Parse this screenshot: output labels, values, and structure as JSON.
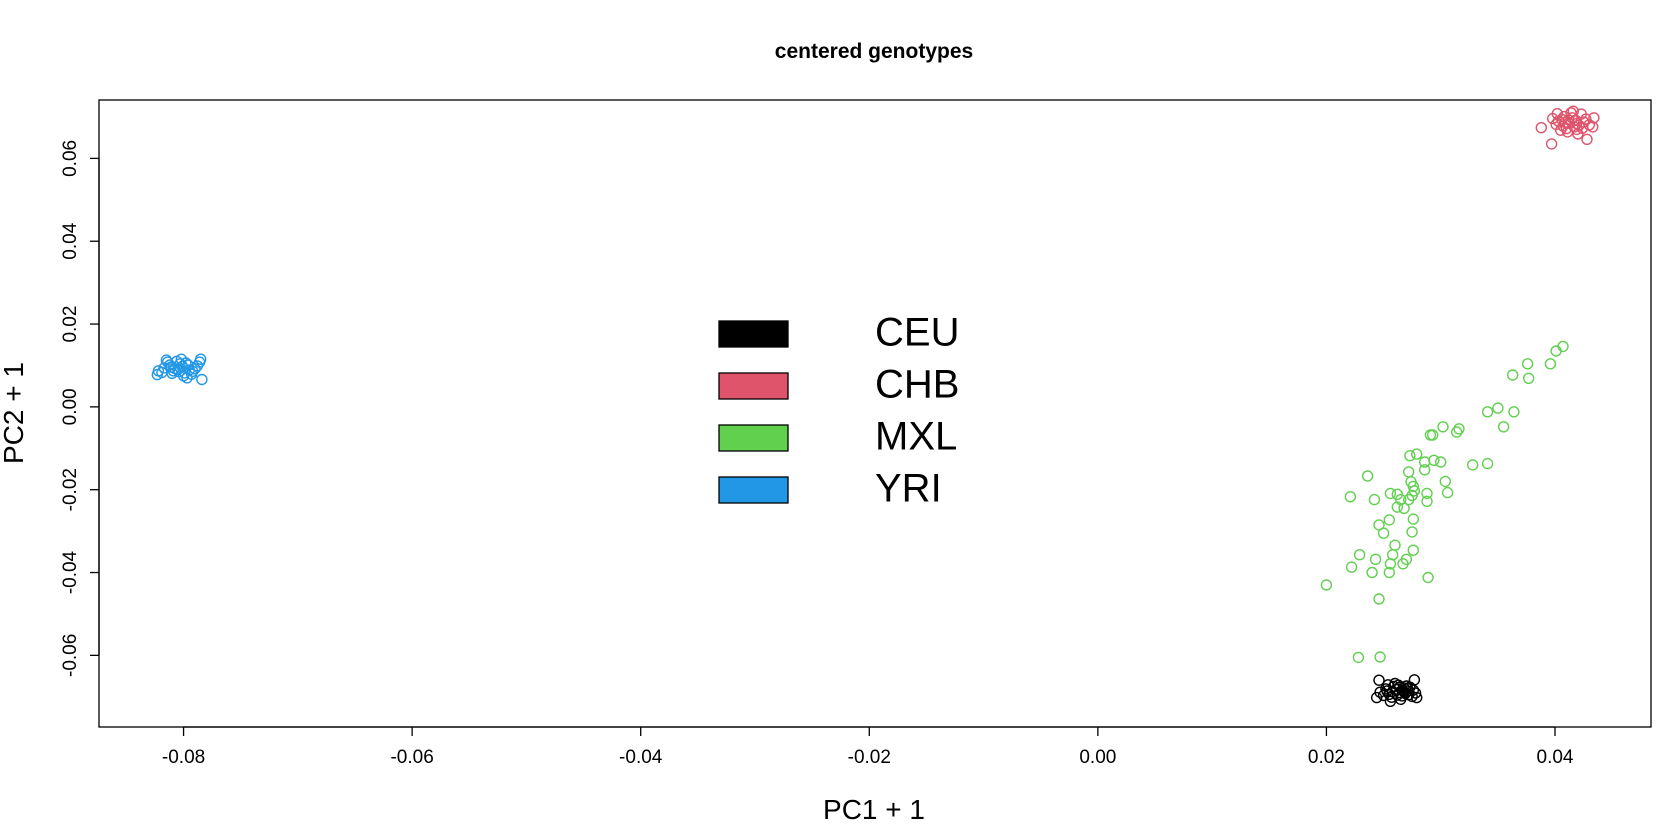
{
  "chart_data": {
    "type": "scatter",
    "title": "centered genotypes",
    "xlabel": "PC1 + 1",
    "ylabel": "PC2 + 1",
    "xlim": [
      -0.0874,
      0.0484
    ],
    "ylim": [
      -0.0773,
      0.0741
    ],
    "xticks": [
      {
        "value": -0.08,
        "label": "-0.08"
      },
      {
        "value": -0.06,
        "label": "-0.06"
      },
      {
        "value": -0.04,
        "label": "-0.04"
      },
      {
        "value": -0.02,
        "label": "-0.02"
      },
      {
        "value": 0.0,
        "label": "0.00"
      },
      {
        "value": 0.02,
        "label": "0.02"
      },
      {
        "value": 0.04,
        "label": "0.04"
      }
    ],
    "yticks": [
      {
        "value": -0.06,
        "label": "-0.06"
      },
      {
        "value": -0.04,
        "label": "-0.04"
      },
      {
        "value": -0.02,
        "label": "-0.02"
      },
      {
        "value": 0.0,
        "label": "0.00"
      },
      {
        "value": 0.02,
        "label": "0.02"
      },
      {
        "value": 0.04,
        "label": "0.04"
      },
      {
        "value": 0.06,
        "label": "0.06"
      }
    ],
    "grid": false,
    "legend": "center",
    "series": [
      {
        "name": "CEU",
        "color": "#000000",
        "points": [
          [
            0.0261,
            -0.0683
          ],
          [
            0.0264,
            -0.069
          ],
          [
            0.0268,
            -0.0679
          ],
          [
            0.0259,
            -0.0675
          ],
          [
            0.0271,
            -0.0686
          ],
          [
            0.0255,
            -0.0694
          ],
          [
            0.0266,
            -0.0698
          ],
          [
            0.0273,
            -0.0677
          ],
          [
            0.0258,
            -0.0687
          ],
          [
            0.0269,
            -0.0692
          ],
          [
            0.0263,
            -0.0672
          ],
          [
            0.0276,
            -0.0684
          ],
          [
            0.0252,
            -0.0681
          ],
          [
            0.0265,
            -0.0706
          ],
          [
            0.0257,
            -0.0701
          ],
          [
            0.0272,
            -0.0695
          ],
          [
            0.0247,
            -0.0689
          ],
          [
            0.0278,
            -0.0691
          ],
          [
            0.026,
            -0.0668
          ],
          [
            0.0267,
            -0.0685
          ],
          [
            0.0254,
            -0.0671
          ],
          [
            0.027,
            -0.0674
          ],
          [
            0.0262,
            -0.0696
          ],
          [
            0.0275,
            -0.0699
          ],
          [
            0.025,
            -0.0697
          ],
          [
            0.0256,
            -0.0711
          ],
          [
            0.0246,
            -0.066
          ],
          [
            0.0277,
            -0.0659
          ],
          [
            0.0244,
            -0.0702
          ],
          [
            0.0279,
            -0.0702
          ],
          [
            0.0264,
            -0.0677
          ],
          [
            0.0268,
            -0.0688
          ],
          [
            0.0253,
            -0.0686
          ],
          [
            0.0271,
            -0.068
          ]
        ]
      },
      {
        "name": "CHB",
        "color": "#DF536B",
        "points": [
          [
            0.0412,
            0.0685
          ],
          [
            0.0418,
            0.0692
          ],
          [
            0.0407,
            0.0678
          ],
          [
            0.0421,
            0.068
          ],
          [
            0.0415,
            0.0698
          ],
          [
            0.0403,
            0.069
          ],
          [
            0.0425,
            0.0688
          ],
          [
            0.041,
            0.0672
          ],
          [
            0.0419,
            0.067
          ],
          [
            0.0408,
            0.0701
          ],
          [
            0.0427,
            0.0695
          ],
          [
            0.0401,
            0.0682
          ],
          [
            0.0414,
            0.071
          ],
          [
            0.0423,
            0.0707
          ],
          [
            0.0405,
            0.0668
          ],
          [
            0.043,
            0.0681
          ],
          [
            0.0398,
            0.0696
          ],
          [
            0.0412,
            0.0693
          ],
          [
            0.0417,
            0.0676
          ],
          [
            0.042,
            0.0659
          ],
          [
            0.0409,
            0.0687
          ],
          [
            0.0388,
            0.0674
          ],
          [
            0.0397,
            0.0635
          ],
          [
            0.0433,
            0.0676
          ],
          [
            0.0434,
            0.0698
          ],
          [
            0.0428,
            0.0646
          ],
          [
            0.0416,
            0.0714
          ],
          [
            0.0402,
            0.0708
          ],
          [
            0.0424,
            0.0673
          ],
          [
            0.0411,
            0.0664
          ],
          [
            0.0406,
            0.0694
          ],
          [
            0.0419,
            0.0684
          ]
        ]
      },
      {
        "name": "MXL",
        "color": "#61D04F",
        "points": [
          [
            0.02,
            -0.043
          ],
          [
            0.0222,
            -0.0387
          ],
          [
            0.0229,
            -0.0357
          ],
          [
            0.0228,
            -0.0605
          ],
          [
            0.0247,
            -0.0604
          ],
          [
            0.0246,
            -0.0464
          ],
          [
            0.024,
            -0.04
          ],
          [
            0.0243,
            -0.0368
          ],
          [
            0.0242,
            -0.0224
          ],
          [
            0.0221,
            -0.0217
          ],
          [
            0.0236,
            -0.0167
          ],
          [
            0.0246,
            -0.0285
          ],
          [
            0.025,
            -0.0305
          ],
          [
            0.0255,
            -0.0273
          ],
          [
            0.026,
            -0.0334
          ],
          [
            0.0258,
            -0.0357
          ],
          [
            0.0256,
            -0.0379
          ],
          [
            0.0255,
            -0.04
          ],
          [
            0.0262,
            -0.0211
          ],
          [
            0.0256,
            -0.0209
          ],
          [
            0.0265,
            -0.0224
          ],
          [
            0.0267,
            -0.0379
          ],
          [
            0.027,
            -0.0368
          ],
          [
            0.0272,
            -0.0224
          ],
          [
            0.0275,
            -0.0214
          ],
          [
            0.0275,
            -0.0302
          ],
          [
            0.0276,
            -0.0271
          ],
          [
            0.0277,
            -0.0203
          ],
          [
            0.0276,
            -0.0192
          ],
          [
            0.0274,
            -0.0181
          ],
          [
            0.0272,
            -0.0157
          ],
          [
            0.0273,
            -0.0118
          ],
          [
            0.0279,
            -0.0114
          ],
          [
            0.0286,
            -0.0133
          ],
          [
            0.0288,
            -0.0209
          ],
          [
            0.0288,
            -0.0228
          ],
          [
            0.0286,
            -0.0152
          ],
          [
            0.0289,
            -0.0412
          ],
          [
            0.0276,
            -0.0346
          ],
          [
            0.0291,
            -0.0068
          ],
          [
            0.0293,
            -0.0068
          ],
          [
            0.0294,
            -0.0129
          ],
          [
            0.03,
            -0.0133
          ],
          [
            0.0302,
            -0.0048
          ],
          [
            0.0304,
            -0.018
          ],
          [
            0.0306,
            -0.0207
          ],
          [
            0.0314,
            -0.0061
          ],
          [
            0.0316,
            -0.0053
          ],
          [
            0.0328,
            -0.014
          ],
          [
            0.0341,
            -0.0137
          ],
          [
            0.0341,
            -0.0012
          ],
          [
            0.035,
            -0.0003
          ],
          [
            0.0355,
            -0.0048
          ],
          [
            0.0364,
            -0.0012
          ],
          [
            0.0363,
            0.0077
          ],
          [
            0.0376,
            0.0104
          ],
          [
            0.0377,
            0.0069
          ],
          [
            0.0396,
            0.0104
          ],
          [
            0.0401,
            0.0135
          ],
          [
            0.0407,
            0.0146
          ],
          [
            0.0268,
            -0.0245
          ],
          [
            0.0262,
            -0.0242
          ]
        ]
      },
      {
        "name": "YRI",
        "color": "#2297E6",
        "points": [
          [
            -0.0808,
            0.0093
          ],
          [
            -0.0801,
            0.0098
          ],
          [
            -0.0795,
            0.0089
          ],
          [
            -0.0812,
            0.0101
          ],
          [
            -0.0804,
            0.0085
          ],
          [
            -0.0817,
            0.0094
          ],
          [
            -0.0798,
            0.0106
          ],
          [
            -0.081,
            0.0081
          ],
          [
            -0.079,
            0.0092
          ],
          [
            -0.0819,
            0.0083
          ],
          [
            -0.0806,
            0.011
          ],
          [
            -0.0793,
            0.0079
          ],
          [
            -0.0786,
            0.0108
          ],
          [
            -0.0814,
            0.0108
          ],
          [
            -0.0822,
            0.0087
          ],
          [
            -0.08,
            0.0075
          ],
          [
            -0.0802,
            0.0115
          ],
          [
            -0.0788,
            0.0099
          ],
          [
            -0.0823,
            0.0078
          ],
          [
            -0.0815,
            0.0113
          ],
          [
            -0.0785,
            0.0115
          ],
          [
            -0.0784,
            0.0066
          ],
          [
            -0.0797,
            0.007
          ],
          [
            -0.0809,
            0.0087
          ],
          [
            -0.0796,
            0.0101
          ],
          [
            -0.0805,
            0.009
          ],
          [
            -0.0811,
            0.0096
          ],
          [
            -0.0792,
            0.0086
          ],
          [
            -0.0803,
            0.0104
          ],
          [
            -0.0799,
            0.0082
          ]
        ]
      }
    ]
  }
}
